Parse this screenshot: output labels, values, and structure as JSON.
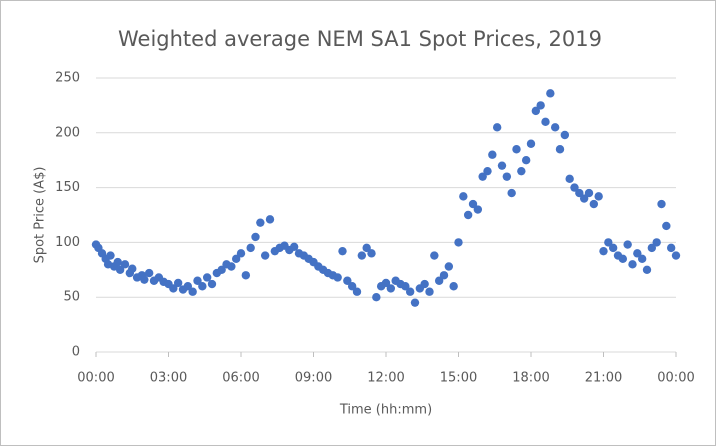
{
  "chart_data": {
    "type": "scatter",
    "title": "Weighted average NEM SA1 Spot Prices, 2019",
    "x_label": "Time (hh:mm)",
    "y_label": "Spot Price (A$)",
    "color": "#4472c4",
    "grid": true,
    "xlim": [
      0,
      24
    ],
    "xticks": [
      {
        "value": 0,
        "label": "00:00"
      },
      {
        "value": 3,
        "label": "03:00"
      },
      {
        "value": 6,
        "label": "06:00"
      },
      {
        "value": 9,
        "label": "09:00"
      },
      {
        "value": 12,
        "label": "12:00"
      },
      {
        "value": 15,
        "label": "15:00"
      },
      {
        "value": 18,
        "label": "18:00"
      },
      {
        "value": 21,
        "label": "21:00"
      },
      {
        "value": 24,
        "label": "00:00"
      }
    ],
    "ylim": [
      0,
      250
    ],
    "yticks": [
      0,
      50,
      100,
      150,
      200,
      250
    ],
    "x": [
      0,
      0.1,
      0.25,
      0.4,
      0.5,
      0.6,
      0.75,
      0.9,
      1.0,
      1.2,
      1.4,
      1.5,
      1.7,
      1.9,
      2.0,
      2.2,
      2.4,
      2.6,
      2.8,
      3.0,
      3.2,
      3.4,
      3.6,
      3.8,
      4.0,
      4.2,
      4.4,
      4.6,
      4.8,
      5.0,
      5.2,
      5.4,
      5.6,
      5.8,
      6.0,
      6.2,
      6.4,
      6.6,
      6.8,
      7.0,
      7.2,
      7.4,
      7.6,
      7.8,
      8.0,
      8.2,
      8.4,
      8.6,
      8.8,
      9.0,
      9.2,
      9.4,
      9.6,
      9.8,
      10.0,
      10.2,
      10.4,
      10.6,
      10.8,
      11.0,
      11.2,
      11.4,
      11.6,
      11.8,
      12.0,
      12.2,
      12.4,
      12.6,
      12.8,
      13.0,
      13.2,
      13.4,
      13.6,
      13.8,
      14.0,
      14.2,
      14.4,
      14.6,
      14.8,
      15.0,
      15.2,
      15.4,
      15.6,
      15.8,
      16.0,
      16.2,
      16.4,
      16.6,
      16.8,
      17.0,
      17.2,
      17.4,
      17.6,
      17.8,
      18.0,
      18.2,
      18.4,
      18.6,
      18.8,
      19.0,
      19.2,
      19.4,
      19.6,
      19.8,
      20.0,
      20.2,
      20.4,
      20.6,
      20.8,
      21.0,
      21.2,
      21.4,
      21.6,
      21.8,
      22.0,
      22.2,
      22.4,
      22.6,
      22.8,
      23.0,
      23.2,
      23.4,
      23.6,
      23.8,
      24.0
    ],
    "values": [
      98,
      95,
      90,
      85,
      80,
      88,
      78,
      82,
      75,
      80,
      72,
      76,
      68,
      70,
      66,
      72,
      65,
      68,
      64,
      62,
      58,
      63,
      57,
      60,
      55,
      65,
      60,
      68,
      62,
      72,
      75,
      80,
      78,
      85,
      90,
      70,
      95,
      105,
      118,
      88,
      121,
      92,
      95,
      97,
      93,
      96,
      90,
      88,
      85,
      82,
      78,
      75,
      72,
      70,
      68,
      92,
      65,
      60,
      55,
      88,
      95,
      90,
      50,
      60,
      63,
      58,
      65,
      62,
      60,
      55,
      45,
      58,
      62,
      55,
      88,
      65,
      70,
      78,
      60,
      100,
      142,
      125,
      135,
      130,
      160,
      165,
      180,
      205,
      170,
      160,
      145,
      185,
      165,
      175,
      190,
      220,
      225,
      210,
      236,
      205,
      185,
      198,
      158,
      150,
      145,
      140,
      145,
      135,
      142,
      92,
      100,
      95,
      88,
      85,
      98,
      80,
      90,
      85,
      75,
      95,
      100,
      135,
      115,
      95,
      88
    ]
  }
}
